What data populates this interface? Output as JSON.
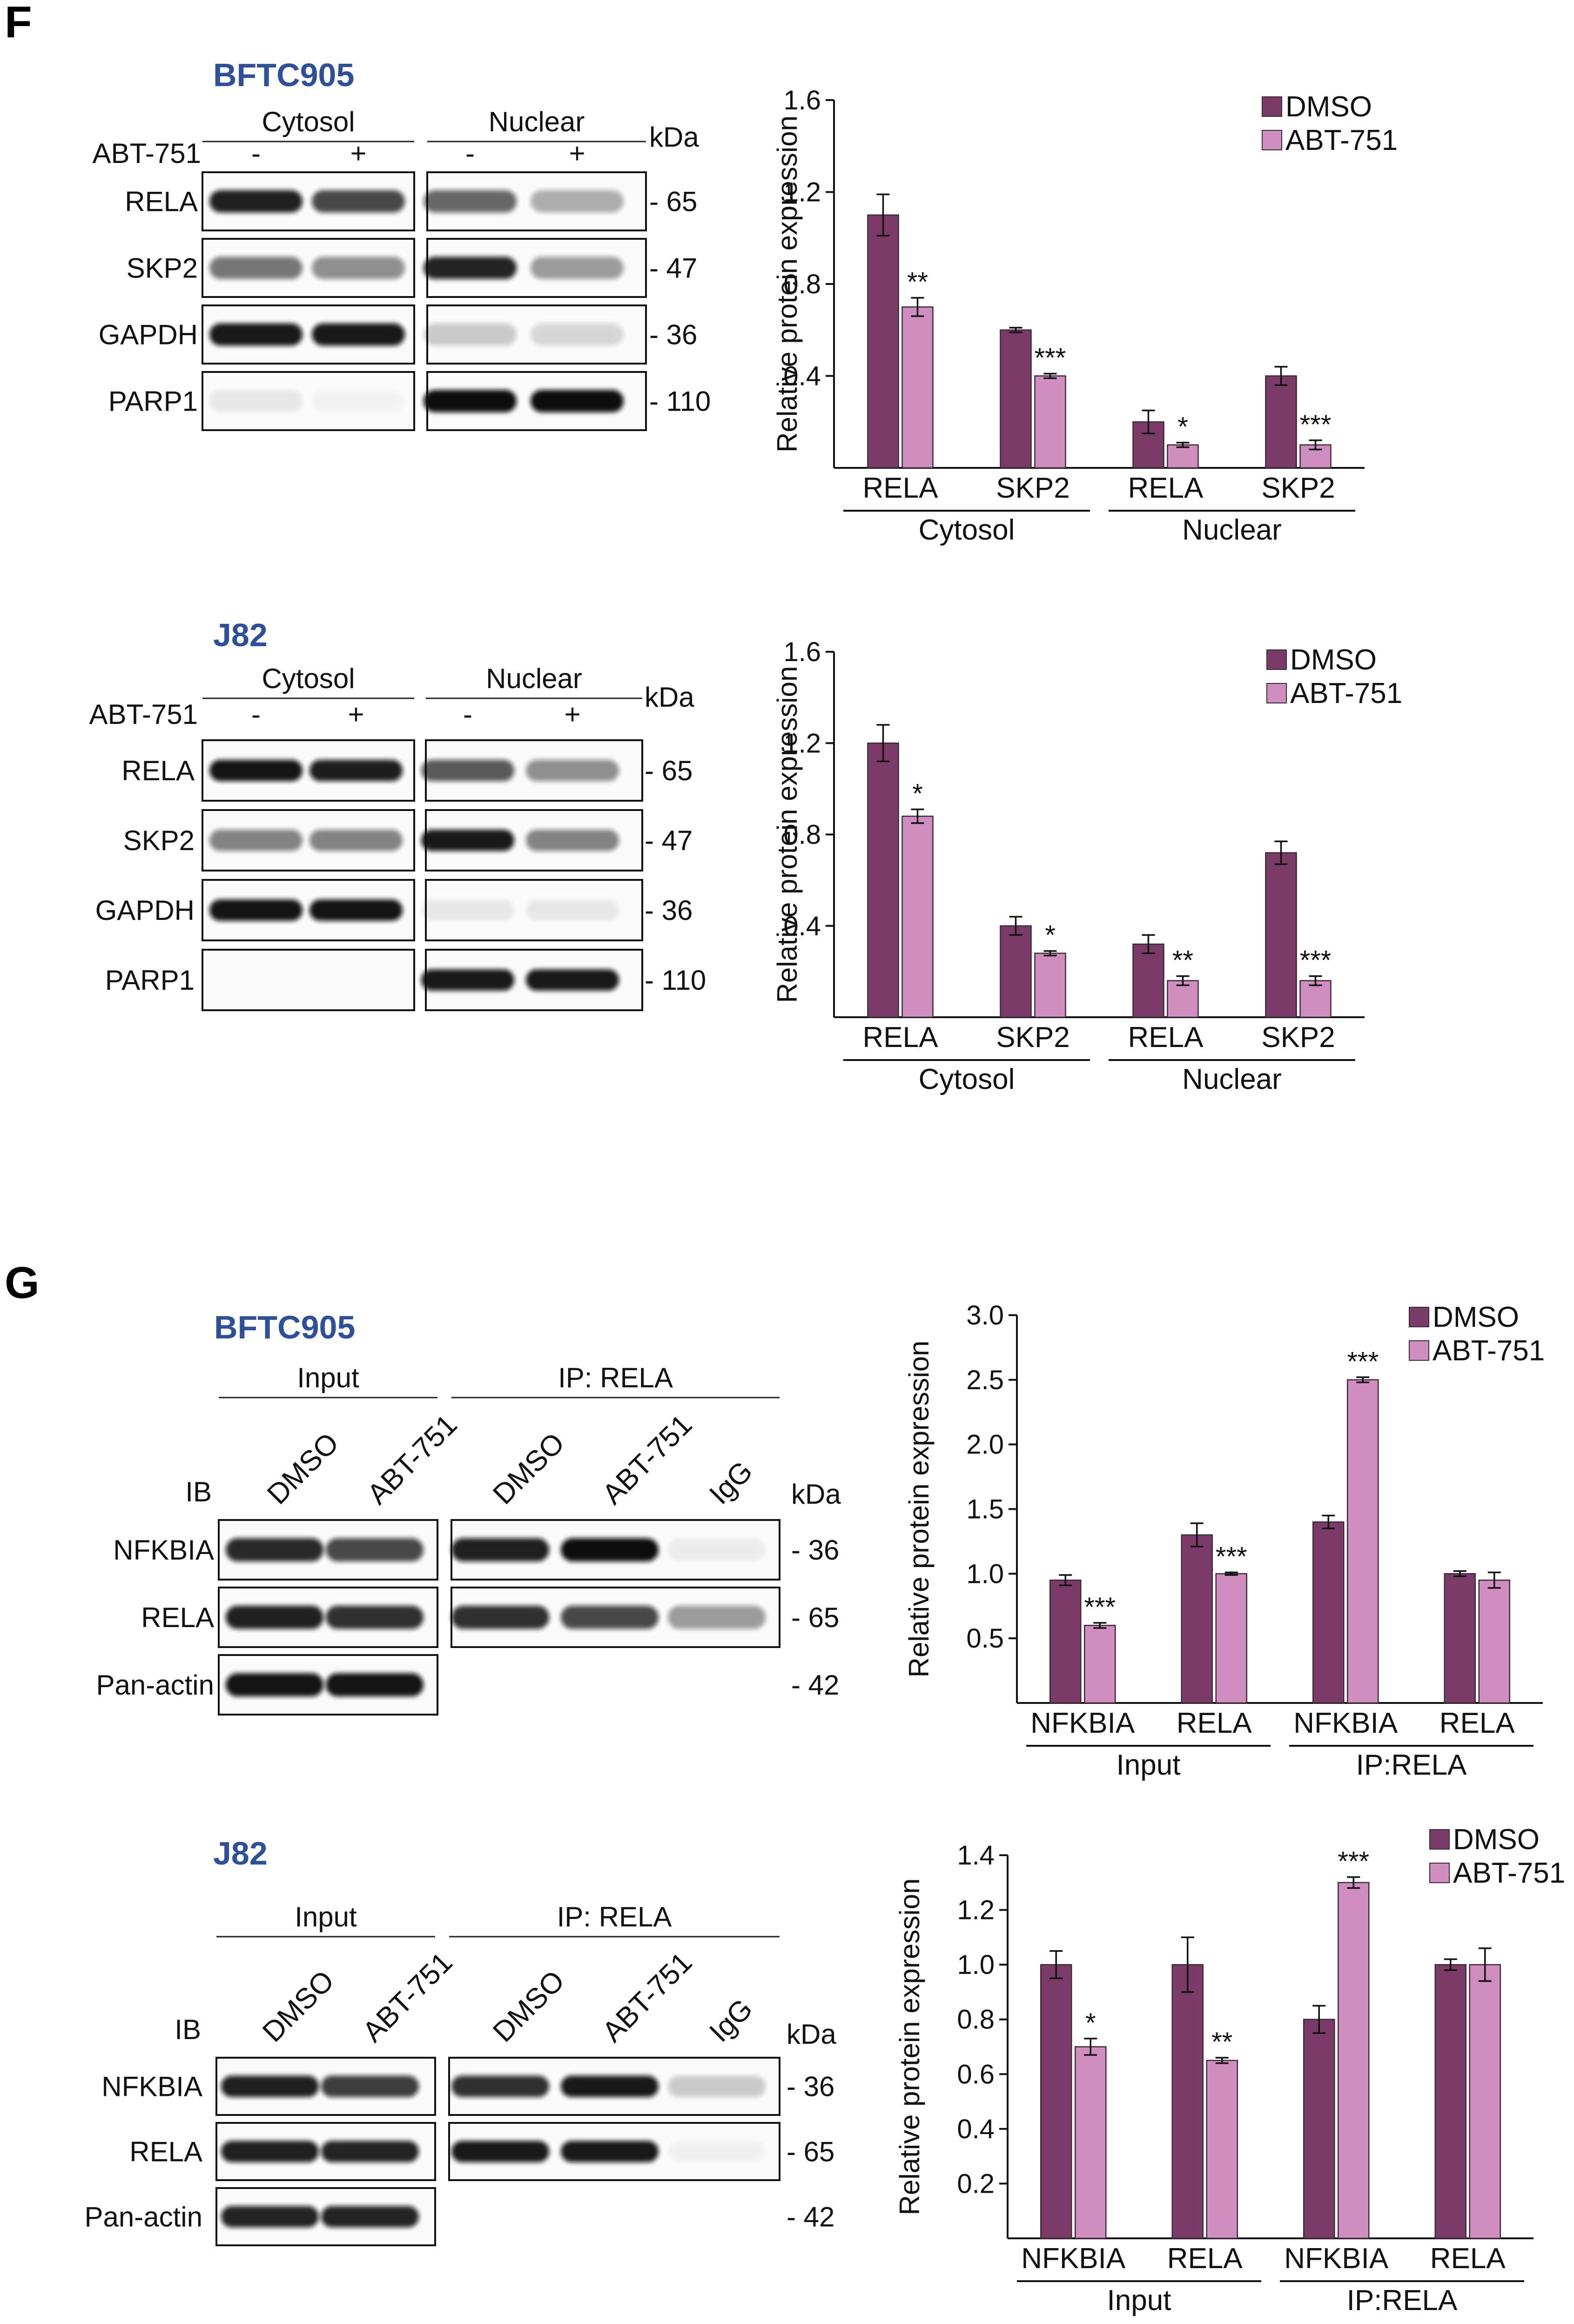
{
  "panels": [
    {
      "letter": "F",
      "blots": [
        {
          "cell_line": "BFTC905",
          "layout": "fraction",
          "treatment_label": "ABT-751",
          "group_labels": [
            "Cytosol",
            "Nuclear"
          ],
          "lane_signs": [
            "-",
            "+"
          ],
          "kda_label": "kDa",
          "rows": [
            {
              "label": "RELA",
              "kda": "- 65"
            },
            {
              "label": "SKP2",
              "kda": "- 47"
            },
            {
              "label": "GAPDH",
              "kda": "- 36"
            },
            {
              "label": "PARP1",
              "kda": "- 110"
            }
          ],
          "intensities": [
            [
              [
                0.92,
                0.75
              ],
              [
                0.62,
                0.32
              ]
            ],
            [
              [
                0.55,
                0.45
              ],
              [
                0.9,
                0.4
              ]
            ],
            [
              [
                0.95,
                0.95
              ],
              [
                0.2,
                0.15
              ]
            ],
            [
              [
                0.08,
                0.03
              ],
              [
                1.0,
                1.0
              ]
            ]
          ]
        },
        {
          "cell_line": "J82",
          "layout": "fraction",
          "treatment_label": "ABT-751",
          "group_labels": [
            "Cytosol",
            "Nuclear"
          ],
          "lane_signs": [
            "-",
            "+"
          ],
          "kda_label": "kDa",
          "rows": [
            {
              "label": "RELA",
              "kda": "- 65"
            },
            {
              "label": "SKP2",
              "kda": "- 47"
            },
            {
              "label": "GAPDH",
              "kda": "- 36"
            },
            {
              "label": "PARP1",
              "kda": "- 110"
            }
          ],
          "intensities": [
            [
              [
                0.97,
                0.93
              ],
              [
                0.68,
                0.45
              ]
            ],
            [
              [
                0.5,
                0.5
              ],
              [
                0.95,
                0.5
              ]
            ],
            [
              [
                0.97,
                0.97
              ],
              [
                0.08,
                0.08
              ]
            ],
            [
              [
                0.0,
                0.0
              ],
              [
                0.95,
                0.95
              ]
            ]
          ]
        }
      ]
    },
    {
      "letter": "G",
      "blots": [
        {
          "cell_line": "BFTC905",
          "layout": "ip",
          "group_labels": [
            "Input",
            "IP: RELA"
          ],
          "ib_label": "IB",
          "lane_labels": [
            [
              "DMSO",
              "ABT-751"
            ],
            [
              "DMSO",
              "ABT-751",
              "IgG"
            ]
          ],
          "kda_label": "kDa",
          "rows": [
            {
              "label": "NFKBIA",
              "kda": "- 36"
            },
            {
              "label": "RELA",
              "kda": "- 65"
            },
            {
              "label": "Pan-actin",
              "kda": "- 42"
            }
          ],
          "intensities": [
            [
              [
                0.88,
                0.75
              ],
              [
                0.92,
                1.0,
                0.06
              ]
            ],
            [
              [
                0.92,
                0.85
              ],
              [
                0.85,
                0.75,
                0.4
              ]
            ],
            [
              [
                0.97,
                0.97
              ],
              null
            ]
          ]
        },
        {
          "cell_line": "J82",
          "layout": "ip",
          "group_labels": [
            "Input",
            "IP: RELA"
          ],
          "ib_label": "IB",
          "lane_labels": [
            [
              "DMSO",
              "ABT-751"
            ],
            [
              "DMSO",
              "ABT-751",
              "IgG"
            ]
          ],
          "kda_label": "kDa",
          "rows": [
            {
              "label": "NFKBIA",
              "kda": "- 36"
            },
            {
              "label": "RELA",
              "kda": "- 65"
            },
            {
              "label": "Pan-actin",
              "kda": "- 42"
            }
          ],
          "intensities": [
            [
              [
                0.92,
                0.8
              ],
              [
                0.85,
                0.95,
                0.2
              ]
            ],
            [
              [
                0.92,
                0.9
              ],
              [
                0.95,
                0.95,
                0.04
              ]
            ],
            [
              [
                0.9,
                0.9
              ],
              null
            ]
          ]
        }
      ]
    }
  ],
  "chart_data": [
    {
      "type": "bar",
      "panel": "F",
      "cell_line": "BFTC905",
      "ylabel": "Relative protein expression",
      "ylim": [
        0,
        1.6
      ],
      "yticks": [
        "0.4",
        "0.8",
        "1.2",
        "1.6"
      ],
      "ytick_values": [
        0.4,
        0.8,
        1.2,
        1.6
      ],
      "categories": [
        "RELA",
        "SKP2",
        "RELA",
        "SKP2"
      ],
      "groups": [
        {
          "label": "Cytosol",
          "span": [
            0,
            1
          ]
        },
        {
          "label": "Nuclear",
          "span": [
            2,
            3
          ]
        }
      ],
      "series": [
        {
          "name": "DMSO",
          "color": "#7b3b68",
          "values": [
            1.1,
            0.6,
            0.2,
            0.4
          ],
          "errors": [
            0.09,
            0.01,
            0.05,
            0.04
          ]
        },
        {
          "name": "ABT-751",
          "color": "#d08ec0",
          "values": [
            0.7,
            0.4,
            0.1,
            0.1
          ],
          "errors": [
            0.04,
            0.01,
            0.01,
            0.02
          ]
        }
      ],
      "significance": [
        "**",
        "***",
        "*",
        "***"
      ],
      "legend": "top-right",
      "grid": false
    },
    {
      "type": "bar",
      "panel": "F",
      "cell_line": "J82",
      "ylabel": "Relative protein expression",
      "ylim": [
        0,
        1.6
      ],
      "yticks": [
        "0.4",
        "0.8",
        "1.2",
        "1.6"
      ],
      "ytick_values": [
        0.4,
        0.8,
        1.2,
        1.6
      ],
      "categories": [
        "RELA",
        "SKP2",
        "RELA",
        "SKP2"
      ],
      "groups": [
        {
          "label": "Cytosol",
          "span": [
            0,
            1
          ]
        },
        {
          "label": "Nuclear",
          "span": [
            2,
            3
          ]
        }
      ],
      "series": [
        {
          "name": "DMSO",
          "color": "#7b3b68",
          "values": [
            1.2,
            0.4,
            0.32,
            0.72
          ],
          "errors": [
            0.08,
            0.04,
            0.04,
            0.05
          ]
        },
        {
          "name": "ABT-751",
          "color": "#d08ec0",
          "values": [
            0.88,
            0.28,
            0.16,
            0.16
          ],
          "errors": [
            0.03,
            0.01,
            0.02,
            0.02
          ]
        }
      ],
      "significance": [
        "*",
        "*",
        "**",
        "***"
      ],
      "legend": "top-right",
      "grid": false
    },
    {
      "type": "bar",
      "panel": "G",
      "cell_line": "BFTC905",
      "ylabel": "Relative protein expression",
      "ylim": [
        0,
        3.0
      ],
      "yticks": [
        "0.5",
        "1.0",
        "1.5",
        "2.0",
        "2.5",
        "3.0"
      ],
      "ytick_values": [
        0.5,
        1.0,
        1.5,
        2.0,
        2.5,
        3.0
      ],
      "categories": [
        "NFKBIA",
        "RELA",
        "NFKBIA",
        "RELA"
      ],
      "groups": [
        {
          "label": "Input",
          "span": [
            0,
            1
          ]
        },
        {
          "label": "IP:RELA",
          "span": [
            2,
            3
          ]
        }
      ],
      "series": [
        {
          "name": "DMSO",
          "color": "#7b3b68",
          "values": [
            0.95,
            1.3,
            1.4,
            1.0
          ],
          "errors": [
            0.04,
            0.09,
            0.05,
            0.02
          ]
        },
        {
          "name": "ABT-751",
          "color": "#d08ec0",
          "values": [
            0.6,
            1.0,
            2.5,
            0.95
          ],
          "errors": [
            0.02,
            0.01,
            0.02,
            0.06
          ]
        }
      ],
      "significance": [
        "***",
        "***",
        "***",
        ""
      ],
      "legend": "top-right",
      "grid": false
    },
    {
      "type": "bar",
      "panel": "G",
      "cell_line": "J82",
      "ylabel": "Relative protein expression",
      "ylim": [
        0,
        1.4
      ],
      "yticks": [
        "0.2",
        "0.4",
        "0.6",
        "0.8",
        "1.0",
        "1.2",
        "1.4"
      ],
      "ytick_values": [
        0.2,
        0.4,
        0.6,
        0.8,
        1.0,
        1.2,
        1.4
      ],
      "categories": [
        "NFKBIA",
        "RELA",
        "NFKBIA",
        "RELA"
      ],
      "groups": [
        {
          "label": "Input",
          "span": [
            0,
            1
          ]
        },
        {
          "label": "IP:RELA",
          "span": [
            2,
            3
          ]
        }
      ],
      "series": [
        {
          "name": "DMSO",
          "color": "#7b3b68",
          "values": [
            1.0,
            1.0,
            0.8,
            1.0
          ],
          "errors": [
            0.05,
            0.1,
            0.05,
            0.02
          ]
        },
        {
          "name": "ABT-751",
          "color": "#d08ec0",
          "values": [
            0.7,
            0.65,
            1.3,
            1.0
          ],
          "errors": [
            0.03,
            0.01,
            0.02,
            0.06
          ]
        }
      ],
      "significance": [
        "*",
        "**",
        "***",
        ""
      ],
      "legend": "top-right",
      "grid": false
    }
  ]
}
